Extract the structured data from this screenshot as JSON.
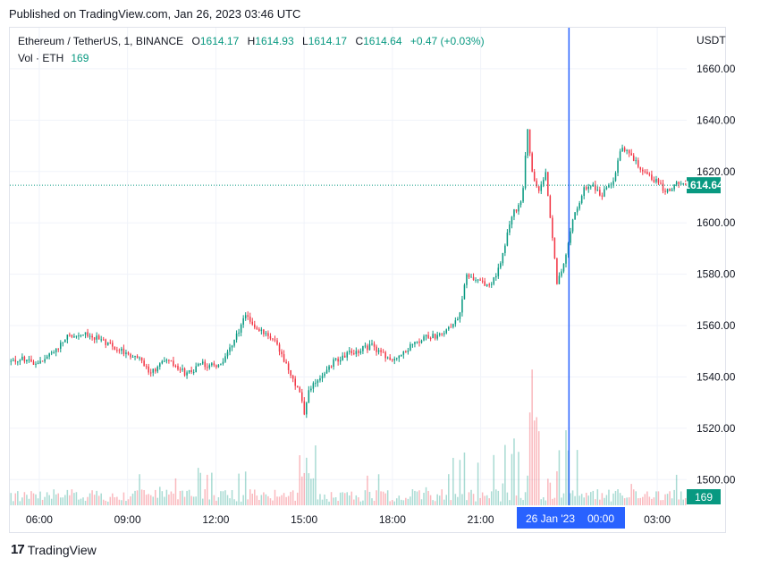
{
  "header": {
    "published": "Published on TradingView.com, Jan 26, 2023 03:46 UTC"
  },
  "legend": {
    "symbol": "Ethereum / TetherUS, 1, BINANCE",
    "o_label": "O",
    "o_value": "1614.17",
    "h_label": "H",
    "h_value": "1614.93",
    "l_label": "L",
    "l_value": "1614.17",
    "c_label": "C",
    "c_value": "1614.64",
    "change": "+0.47 (+0.03%)",
    "vol_label": "Vol · ETH",
    "vol_value": "169"
  },
  "axis": {
    "currency": "USDT"
  },
  "footer": {
    "brand": "TradingView",
    "logo": "17"
  },
  "colors": {
    "up": "#089981",
    "down": "#F23645",
    "crosshair": "#2962FF",
    "grid": "#f0f3fa"
  },
  "chart_data": {
    "type": "candlestick",
    "y_ticks": [
      "1660.00",
      "1640.00",
      "1620.00",
      "1600.00",
      "1580.00",
      "1560.00",
      "1540.00",
      "1520.00",
      "1500.00"
    ],
    "y_range": [
      1490,
      1676
    ],
    "x_ticks": [
      "06:00",
      "09:00",
      "12:00",
      "15:00",
      "18:00",
      "21:00",
      "00:00",
      "03:00"
    ],
    "x_range_hours": [
      5.0,
      28.0
    ],
    "current_price": "1614.64",
    "current_volume": "169",
    "crosshair_label": "26 Jan '23",
    "crosshair_time": "00:00",
    "price_path": [
      [
        5.0,
        1546
      ],
      [
        5.5,
        1547
      ],
      [
        6.0,
        1545
      ],
      [
        6.5,
        1550
      ],
      [
        7.0,
        1556
      ],
      [
        7.5,
        1557
      ],
      [
        8.0,
        1555
      ],
      [
        8.5,
        1552
      ],
      [
        9.0,
        1549
      ],
      [
        9.5,
        1546
      ],
      [
        9.8,
        1541
      ],
      [
        10.2,
        1547
      ],
      [
        10.6,
        1545
      ],
      [
        11.0,
        1541
      ],
      [
        11.5,
        1545
      ],
      [
        12.0,
        1544
      ],
      [
        12.3,
        1547
      ],
      [
        12.7,
        1556
      ],
      [
        13.0,
        1564
      ],
      [
        13.3,
        1560
      ],
      [
        13.7,
        1557
      ],
      [
        14.0,
        1554
      ],
      [
        14.3,
        1547
      ],
      [
        14.6,
        1539
      ],
      [
        14.85,
        1534
      ],
      [
        15.0,
        1526
      ],
      [
        15.2,
        1536
      ],
      [
        15.6,
        1541
      ],
      [
        16.0,
        1546
      ],
      [
        16.5,
        1549
      ],
      [
        17.0,
        1551
      ],
      [
        17.3,
        1552
      ],
      [
        17.6,
        1549
      ],
      [
        18.0,
        1547
      ],
      [
        18.5,
        1551
      ],
      [
        19.0,
        1555
      ],
      [
        19.5,
        1556
      ],
      [
        20.0,
        1559
      ],
      [
        20.3,
        1565
      ],
      [
        20.5,
        1580
      ],
      [
        20.8,
        1578
      ],
      [
        21.0,
        1577
      ],
      [
        21.3,
        1575
      ],
      [
        21.6,
        1582
      ],
      [
        21.9,
        1595
      ],
      [
        22.1,
        1604
      ],
      [
        22.4,
        1608
      ],
      [
        22.6,
        1637
      ],
      [
        22.7,
        1624
      ],
      [
        22.85,
        1614
      ],
      [
        23.0,
        1612
      ],
      [
        23.2,
        1620
      ],
      [
        23.45,
        1593
      ],
      [
        23.6,
        1576
      ],
      [
        23.9,
        1588
      ],
      [
        24.2,
        1604
      ],
      [
        24.5,
        1613
      ],
      [
        24.8,
        1615
      ],
      [
        25.1,
        1611
      ],
      [
        25.5,
        1616
      ],
      [
        25.8,
        1630
      ],
      [
        26.2,
        1625
      ],
      [
        26.6,
        1619
      ],
      [
        27.0,
        1616
      ],
      [
        27.3,
        1612
      ],
      [
        27.7,
        1616
      ],
      [
        28.0,
        1614
      ]
    ]
  }
}
